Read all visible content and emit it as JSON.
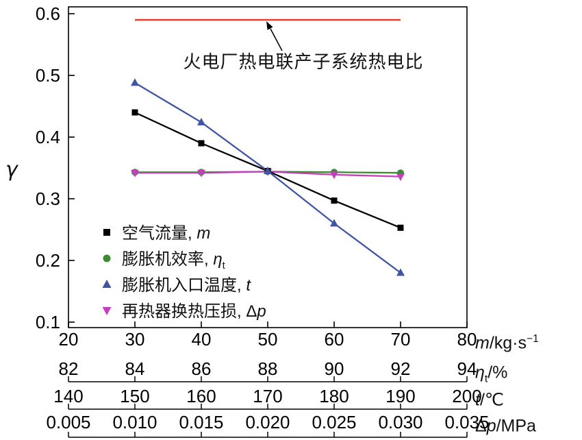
{
  "chart_data": {
    "type": "line",
    "title": "",
    "ylabel": "γ",
    "ylim": [
      0.1,
      0.6
    ],
    "y_ticks": [
      0.1,
      0.2,
      0.3,
      0.4,
      0.5,
      0.6
    ],
    "y_tick_labels": [
      "0.1",
      "0.2",
      "0.3",
      "0.4",
      "0.5",
      "0.6"
    ],
    "grid": false,
    "legend_position": "inside-lower-left",
    "x_axes": [
      {
        "id": "m",
        "label_text": "m/kg·s−1",
        "min": 20,
        "max": 80,
        "ticks": [
          20,
          30,
          40,
          50,
          60,
          70,
          80
        ],
        "tick_labels": [
          "20",
          "30",
          "40",
          "50",
          "60",
          "70",
          "80"
        ],
        "unit": {
          "pre": "",
          "sym": "m",
          "sub": "",
          "rest": "/kg·s",
          "sup": "−1"
        }
      },
      {
        "id": "eta",
        "label_text": "ηt/%",
        "min": 82,
        "max": 94,
        "ticks": [
          82,
          84,
          86,
          88,
          90,
          92,
          94
        ],
        "tick_labels": [
          "82",
          "84",
          "86",
          "88",
          "90",
          "92",
          "94"
        ],
        "unit": {
          "pre": "",
          "sym": "η",
          "sub": "t",
          "rest": "/%",
          "sup": ""
        }
      },
      {
        "id": "t",
        "label_text": "t/℃",
        "min": 140,
        "max": 200,
        "ticks": [
          140,
          150,
          160,
          170,
          180,
          190,
          200
        ],
        "tick_labels": [
          "140",
          "150",
          "160",
          "170",
          "180",
          "190",
          "200"
        ],
        "unit": {
          "pre": "",
          "sym": "t",
          "sub": "",
          "rest": "/℃",
          "sup": ""
        }
      },
      {
        "id": "dp",
        "label_text": "Δp/MPa",
        "min": 0.005,
        "max": 0.035,
        "ticks": [
          0.005,
          0.01,
          0.015,
          0.02,
          0.025,
          0.03,
          0.035
        ],
        "tick_labels": [
          "0.005",
          "0.010",
          "0.015",
          "0.020",
          "0.025",
          "0.030",
          "0.035"
        ],
        "unit": {
          "pre": "Δ",
          "sym": "p",
          "sub": "",
          "rest": "/MPa",
          "sup": ""
        }
      }
    ],
    "reference_line": {
      "value": 0.59,
      "x_start": 30,
      "x_end": 70,
      "color": "#ee3b2a",
      "label": "火电厂热电联产子系统热电比"
    },
    "series": [
      {
        "name": "空气流量, m",
        "axis": "m",
        "marker": "square",
        "color": "#000000",
        "x": [
          30,
          40,
          50,
          60,
          70
        ],
        "y": [
          0.44,
          0.39,
          0.345,
          0.297,
          0.253
        ]
      },
      {
        "name": "膨胀机效率, ηt",
        "axis": "eta",
        "marker": "circle",
        "color": "#3d8a30",
        "x": [
          84,
          86,
          88,
          90,
          92
        ],
        "y": [
          0.343,
          0.343,
          0.344,
          0.343,
          0.342
        ]
      },
      {
        "name": "膨胀机入口温度, t",
        "axis": "t",
        "marker": "triangle-up",
        "color": "#3e55a6",
        "x": [
          150,
          160,
          170,
          180,
          190
        ],
        "y": [
          0.488,
          0.424,
          0.345,
          0.26,
          0.18
        ]
      },
      {
        "name": "再热器换热压损, Δp",
        "axis": "dp",
        "marker": "triangle-down",
        "color": "#c43fbe",
        "x": [
          0.01,
          0.015,
          0.02,
          0.025,
          0.03
        ],
        "y": [
          0.342,
          0.342,
          0.344,
          0.339,
          0.336
        ]
      }
    ],
    "legend": [
      {
        "text": "空气流量, ",
        "sym": "m",
        "sub": ""
      },
      {
        "text": "膨胀机效率, ",
        "sym": "η",
        "sub": "t"
      },
      {
        "text": "膨胀机入口温度, ",
        "sym": "t",
        "sub": ""
      },
      {
        "text": "再热器换热压损, Δ",
        "sym": "p",
        "sub": ""
      }
    ]
  }
}
